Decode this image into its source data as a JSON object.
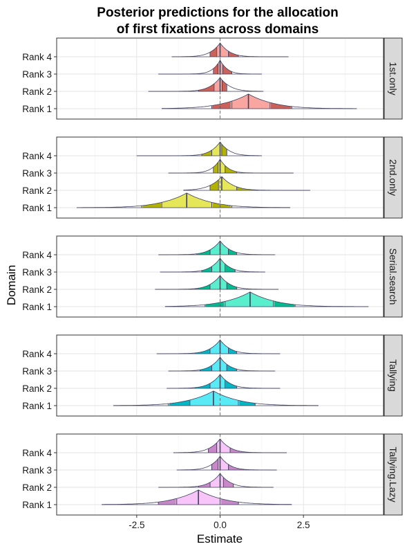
{
  "chart_data": {
    "type": "ridgeline",
    "title": "Posterior predictions for the allocation\nof first fixations across domains",
    "xlabel": "Estimate",
    "ylabel": "Domain",
    "xlim": [
      -4.9,
      4.9
    ],
    "x_ticks": [
      -2.5,
      0.0,
      2.5
    ],
    "x_tick_labels": [
      "-2.5",
      "0.0",
      "2.5"
    ],
    "reference_line": 0,
    "grid": true,
    "categories": [
      "Rank 4",
      "Rank 3",
      "Rank 2",
      "Rank 1"
    ],
    "facets": [
      {
        "label": "1st.only",
        "color": "#F8766D",
        "ranks": [
          {
            "rank": "Rank 4",
            "median": 0.0,
            "q25": -0.1,
            "q75": 0.25,
            "q10": -0.3,
            "q90": 0.55,
            "min": -1.45,
            "max": 2.05,
            "sd": 0.28,
            "height": 0.8
          },
          {
            "rank": "Rank 3",
            "median": 0.0,
            "q25": -0.06,
            "q75": 0.08,
            "q10": -0.2,
            "q90": 0.35,
            "min": -1.85,
            "max": 1.25,
            "sd": 0.22,
            "height": 0.8
          },
          {
            "rank": "Rank 2",
            "median": 0.0,
            "q25": -0.18,
            "q75": 0.06,
            "q10": -0.65,
            "q90": 0.2,
            "min": -2.15,
            "max": 1.3,
            "sd": 0.3,
            "height": 0.8
          },
          {
            "rank": "Rank 1",
            "median": 0.85,
            "q25": 0.35,
            "q75": 1.5,
            "q10": -0.25,
            "q90": 2.15,
            "min": -1.75,
            "max": 4.1,
            "sd": 0.75,
            "height": 0.85
          }
        ]
      },
      {
        "label": "2nd.only",
        "color": "#D9D900",
        "ranks": [
          {
            "rank": "Rank 4",
            "median": 0.0,
            "q25": -0.25,
            "q75": 0.05,
            "q10": -0.55,
            "q90": 0.2,
            "min": -2.5,
            "max": 1.25,
            "sd": 0.28,
            "height": 0.8
          },
          {
            "rank": "Rank 3",
            "median": 0.0,
            "q25": -0.06,
            "q75": 0.15,
            "q10": -0.2,
            "q90": 0.5,
            "min": -1.55,
            "max": 2.2,
            "sd": 0.24,
            "height": 0.8
          },
          {
            "rank": "Rank 2",
            "median": 0.05,
            "q25": -0.05,
            "q75": 0.5,
            "q10": -0.3,
            "q90": 1.15,
            "min": -1.1,
            "max": 2.7,
            "sd": 0.35,
            "height": 0.8
          },
          {
            "rank": "Rank 1",
            "median": -1.0,
            "q25": -1.75,
            "q75": -0.25,
            "q10": -2.35,
            "q90": 0.35,
            "min": -4.3,
            "max": 2.1,
            "sd": 0.75,
            "height": 0.85
          }
        ]
      },
      {
        "label": "Serial.search",
        "color": "#00E6B0",
        "ranks": [
          {
            "rank": "Rank 4",
            "median": 0.0,
            "q25": -0.3,
            "q75": 0.25,
            "q10": -0.7,
            "q90": 0.5,
            "min": -1.85,
            "max": 1.65,
            "sd": 0.3,
            "height": 0.8
          },
          {
            "rank": "Rank 3",
            "median": 0.0,
            "q25": -0.25,
            "q75": 0.15,
            "q10": -0.55,
            "q90": 0.45,
            "min": -1.8,
            "max": 1.35,
            "sd": 0.28,
            "height": 0.8
          },
          {
            "rank": "Rank 2",
            "median": 0.0,
            "q25": -0.3,
            "q75": 0.2,
            "q10": -0.75,
            "q90": 0.5,
            "min": -1.95,
            "max": 1.75,
            "sd": 0.3,
            "height": 0.8
          },
          {
            "rank": "Rank 1",
            "median": 0.9,
            "q25": 0.15,
            "q75": 1.6,
            "q10": -0.45,
            "q90": 2.25,
            "min": -1.65,
            "max": 4.45,
            "sd": 0.75,
            "height": 0.85
          }
        ]
      },
      {
        "label": "Tallying",
        "color": "#00E0F0",
        "ranks": [
          {
            "rank": "Rank 4",
            "median": 0.0,
            "q25": -0.3,
            "q75": 0.25,
            "q10": -0.75,
            "q90": 0.5,
            "min": -1.9,
            "max": 1.8,
            "sd": 0.3,
            "height": 0.8
          },
          {
            "rank": "Rank 3",
            "median": 0.0,
            "q25": -0.25,
            "q75": 0.2,
            "q10": -0.6,
            "q90": 0.5,
            "min": -1.55,
            "max": 1.65,
            "sd": 0.28,
            "height": 0.8
          },
          {
            "rank": "Rank 2",
            "median": 0.0,
            "q25": -0.3,
            "q75": 0.15,
            "q10": -0.75,
            "q90": 0.5,
            "min": -1.6,
            "max": 1.8,
            "sd": 0.3,
            "height": 0.8
          },
          {
            "rank": "Rank 1",
            "median": -0.2,
            "q25": -0.9,
            "q75": 0.55,
            "q10": -1.55,
            "q90": 1.05,
            "min": -3.2,
            "max": 2.95,
            "sd": 0.75,
            "height": 0.85
          }
        ]
      },
      {
        "label": "Tallying.Lazy",
        "color": "#F2A6F2",
        "ranks": [
          {
            "rank": "Rank 4",
            "median": 0.0,
            "q25": -0.1,
            "q75": 0.3,
            "q10": -0.35,
            "q90": 0.8,
            "min": -1.4,
            "max": 2.0,
            "sd": 0.3,
            "height": 0.8
          },
          {
            "rank": "Rank 3",
            "median": 0.0,
            "q25": -0.06,
            "q75": 0.25,
            "q10": -0.25,
            "q90": 0.7,
            "min": -1.3,
            "max": 1.7,
            "sd": 0.28,
            "height": 0.8
          },
          {
            "rank": "Rank 2",
            "median": 0.0,
            "q25": -0.3,
            "q75": 0.1,
            "q10": -0.65,
            "q90": 0.4,
            "min": -1.85,
            "max": 1.6,
            "sd": 0.3,
            "height": 0.8
          },
          {
            "rank": "Rank 1",
            "median": -0.65,
            "q25": -1.3,
            "q75": 0.0,
            "q10": -1.85,
            "q90": 0.55,
            "min": -3.55,
            "max": 2.15,
            "sd": 0.75,
            "height": 0.85
          }
        ]
      }
    ]
  }
}
